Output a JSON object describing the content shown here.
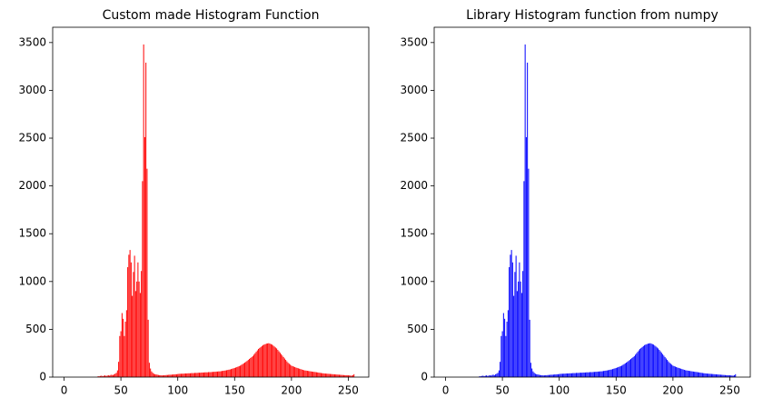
{
  "chart_data": [
    {
      "type": "bar",
      "title": "Custom made Histogram Function",
      "color": "#ff0000",
      "x": [
        0,
        1,
        2,
        3,
        4,
        5,
        6,
        7,
        8,
        9,
        10,
        11,
        12,
        13,
        14,
        15,
        16,
        17,
        18,
        19,
        20,
        21,
        22,
        23,
        24,
        25,
        26,
        27,
        28,
        29,
        30,
        31,
        32,
        33,
        34,
        35,
        36,
        37,
        38,
        39,
        40,
        41,
        42,
        43,
        44,
        45,
        46,
        47,
        48,
        49,
        50,
        51,
        52,
        53,
        54,
        55,
        56,
        57,
        58,
        59,
        60,
        61,
        62,
        63,
        64,
        65,
        66,
        67,
        68,
        69,
        70,
        71,
        72,
        73,
        74,
        75,
        76,
        77,
        78,
        79,
        80,
        81,
        82,
        83,
        84,
        85,
        86,
        87,
        88,
        89,
        90,
        91,
        92,
        93,
        94,
        95,
        96,
        97,
        98,
        99,
        100,
        101,
        102,
        103,
        104,
        105,
        106,
        107,
        108,
        109,
        110,
        111,
        112,
        113,
        114,
        115,
        116,
        117,
        118,
        119,
        120,
        121,
        122,
        123,
        124,
        125,
        126,
        127,
        128,
        129,
        130,
        131,
        132,
        133,
        134,
        135,
        136,
        137,
        138,
        139,
        140,
        141,
        142,
        143,
        144,
        145,
        146,
        147,
        148,
        149,
        150,
        151,
        152,
        153,
        154,
        155,
        156,
        157,
        158,
        159,
        160,
        161,
        162,
        163,
        164,
        165,
        166,
        167,
        168,
        169,
        170,
        171,
        172,
        173,
        174,
        175,
        176,
        177,
        178,
        179,
        180,
        181,
        182,
        183,
        184,
        185,
        186,
        187,
        188,
        189,
        190,
        191,
        192,
        193,
        194,
        195,
        196,
        197,
        198,
        199,
        200,
        201,
        202,
        203,
        204,
        205,
        206,
        207,
        208,
        209,
        210,
        211,
        212,
        213,
        214,
        215,
        216,
        217,
        218,
        219,
        220,
        221,
        222,
        223,
        224,
        225,
        226,
        227,
        228,
        229,
        230,
        231,
        232,
        233,
        234,
        235,
        236,
        237,
        238,
        239,
        240,
        241,
        242,
        243,
        244,
        245,
        246,
        247,
        248,
        249,
        250,
        251,
        252,
        253,
        254,
        255
      ],
      "values": [
        0,
        0,
        0,
        0,
        0,
        0,
        0,
        0,
        0,
        0,
        0,
        0,
        0,
        0,
        0,
        0,
        0,
        0,
        0,
        0,
        0,
        0,
        0,
        0,
        0,
        0,
        0,
        0,
        0,
        0,
        10,
        8,
        12,
        15,
        10,
        14,
        18,
        12,
        16,
        20,
        15,
        22,
        25,
        20,
        30,
        35,
        45,
        70,
        160,
        430,
        480,
        670,
        610,
        430,
        580,
        700,
        1150,
        1280,
        1330,
        1200,
        850,
        1100,
        1270,
        900,
        1000,
        1200,
        1000,
        880,
        1110,
        2050,
        3480,
        2510,
        3290,
        2180,
        600,
        150,
        90,
        60,
        45,
        35,
        30,
        28,
        25,
        22,
        20,
        20,
        18,
        18,
        20,
        20,
        22,
        22,
        24,
        25,
        25,
        26,
        28,
        28,
        30,
        30,
        32,
        34,
        35,
        35,
        36,
        36,
        38,
        38,
        38,
        40,
        40,
        40,
        42,
        42,
        42,
        44,
        44,
        44,
        46,
        46,
        46,
        48,
        48,
        48,
        50,
        50,
        50,
        52,
        52,
        52,
        54,
        54,
        56,
        56,
        58,
        58,
        60,
        60,
        62,
        64,
        66,
        68,
        70,
        72,
        75,
        78,
        80,
        84,
        88,
        92,
        96,
        100,
        105,
        110,
        115,
        120,
        128,
        136,
        144,
        152,
        160,
        170,
        180,
        190,
        200,
        210,
        220,
        235,
        250,
        265,
        280,
        295,
        305,
        315,
        325,
        335,
        340,
        345,
        350,
        352,
        355,
        350,
        345,
        340,
        330,
        320,
        310,
        300,
        285,
        270,
        255,
        240,
        225,
        210,
        195,
        180,
        165,
        150,
        140,
        130,
        120,
        115,
        110,
        105,
        100,
        96,
        92,
        88,
        84,
        80,
        76,
        72,
        70,
        68,
        66,
        64,
        62,
        60,
        58,
        56,
        55,
        53,
        51,
        49,
        47,
        45,
        43,
        41,
        40,
        38,
        37,
        36,
        35,
        34,
        33,
        32,
        31,
        30,
        29,
        28,
        27,
        26,
        25,
        24,
        23,
        22,
        21,
        20,
        20,
        20,
        18,
        18,
        16,
        15,
        20,
        30
      ],
      "xlim": [
        -10,
        268
      ],
      "ylim": [
        0,
        3660
      ],
      "xticks": [
        0,
        50,
        100,
        150,
        200,
        250
      ],
      "yticks": [
        0,
        500,
        1000,
        1500,
        2000,
        2500,
        3000,
        3500
      ]
    },
    {
      "type": "bar",
      "title": "Library Histogram function from numpy",
      "color": "#0000ff",
      "x": [
        0,
        1,
        2,
        3,
        4,
        5,
        6,
        7,
        8,
        9,
        10,
        11,
        12,
        13,
        14,
        15,
        16,
        17,
        18,
        19,
        20,
        21,
        22,
        23,
        24,
        25,
        26,
        27,
        28,
        29,
        30,
        31,
        32,
        33,
        34,
        35,
        36,
        37,
        38,
        39,
        40,
        41,
        42,
        43,
        44,
        45,
        46,
        47,
        48,
        49,
        50,
        51,
        52,
        53,
        54,
        55,
        56,
        57,
        58,
        59,
        60,
        61,
        62,
        63,
        64,
        65,
        66,
        67,
        68,
        69,
        70,
        71,
        72,
        73,
        74,
        75,
        76,
        77,
        78,
        79,
        80,
        81,
        82,
        83,
        84,
        85,
        86,
        87,
        88,
        89,
        90,
        91,
        92,
        93,
        94,
        95,
        96,
        97,
        98,
        99,
        100,
        101,
        102,
        103,
        104,
        105,
        106,
        107,
        108,
        109,
        110,
        111,
        112,
        113,
        114,
        115,
        116,
        117,
        118,
        119,
        120,
        121,
        122,
        123,
        124,
        125,
        126,
        127,
        128,
        129,
        130,
        131,
        132,
        133,
        134,
        135,
        136,
        137,
        138,
        139,
        140,
        141,
        142,
        143,
        144,
        145,
        146,
        147,
        148,
        149,
        150,
        151,
        152,
        153,
        154,
        155,
        156,
        157,
        158,
        159,
        160,
        161,
        162,
        163,
        164,
        165,
        166,
        167,
        168,
        169,
        170,
        171,
        172,
        173,
        174,
        175,
        176,
        177,
        178,
        179,
        180,
        181,
        182,
        183,
        184,
        185,
        186,
        187,
        188,
        189,
        190,
        191,
        192,
        193,
        194,
        195,
        196,
        197,
        198,
        199,
        200,
        201,
        202,
        203,
        204,
        205,
        206,
        207,
        208,
        209,
        210,
        211,
        212,
        213,
        214,
        215,
        216,
        217,
        218,
        219,
        220,
        221,
        222,
        223,
        224,
        225,
        226,
        227,
        228,
        229,
        230,
        231,
        232,
        233,
        234,
        235,
        236,
        237,
        238,
        239,
        240,
        241,
        242,
        243,
        244,
        245,
        246,
        247,
        248,
        249,
        250,
        251,
        252,
        253,
        254,
        255
      ],
      "values": [
        0,
        0,
        0,
        0,
        0,
        0,
        0,
        0,
        0,
        0,
        0,
        0,
        0,
        0,
        0,
        0,
        0,
        0,
        0,
        0,
        0,
        0,
        0,
        0,
        0,
        0,
        0,
        0,
        0,
        0,
        10,
        8,
        12,
        15,
        10,
        14,
        18,
        12,
        16,
        20,
        15,
        22,
        25,
        20,
        30,
        35,
        45,
        70,
        160,
        430,
        480,
        670,
        610,
        430,
        580,
        700,
        1150,
        1280,
        1330,
        1200,
        850,
        1100,
        1270,
        900,
        1000,
        1200,
        1000,
        880,
        1110,
        2050,
        3480,
        2510,
        3290,
        2180,
        600,
        150,
        90,
        60,
        45,
        35,
        30,
        28,
        25,
        22,
        20,
        20,
        18,
        18,
        20,
        20,
        22,
        22,
        24,
        25,
        25,
        26,
        28,
        28,
        30,
        30,
        32,
        34,
        35,
        35,
        36,
        36,
        38,
        38,
        38,
        40,
        40,
        40,
        42,
        42,
        42,
        44,
        44,
        44,
        46,
        46,
        46,
        48,
        48,
        48,
        50,
        50,
        50,
        52,
        52,
        52,
        54,
        54,
        56,
        56,
        58,
        58,
        60,
        60,
        62,
        64,
        66,
        68,
        70,
        72,
        75,
        78,
        80,
        84,
        88,
        92,
        96,
        100,
        105,
        110,
        115,
        120,
        128,
        136,
        144,
        152,
        160,
        170,
        180,
        190,
        200,
        210,
        220,
        235,
        250,
        265,
        280,
        295,
        305,
        315,
        325,
        335,
        340,
        345,
        350,
        352,
        355,
        350,
        345,
        340,
        330,
        320,
        310,
        300,
        285,
        270,
        255,
        240,
        225,
        210,
        195,
        180,
        165,
        150,
        140,
        130,
        120,
        115,
        110,
        105,
        100,
        96,
        92,
        88,
        84,
        80,
        76,
        72,
        70,
        68,
        66,
        64,
        62,
        60,
        58,
        56,
        55,
        53,
        51,
        49,
        47,
        45,
        43,
        41,
        40,
        38,
        37,
        36,
        35,
        34,
        33,
        32,
        31,
        30,
        29,
        28,
        27,
        26,
        25,
        24,
        23,
        22,
        21,
        20,
        20,
        20,
        18,
        18,
        16,
        15,
        20,
        30
      ],
      "xlim": [
        -10,
        268
      ],
      "ylim": [
        0,
        3660
      ],
      "xticks": [
        0,
        50,
        100,
        150,
        200,
        250
      ],
      "yticks": [
        0,
        500,
        1000,
        1500,
        2000,
        2500,
        3000,
        3500
      ]
    }
  ]
}
